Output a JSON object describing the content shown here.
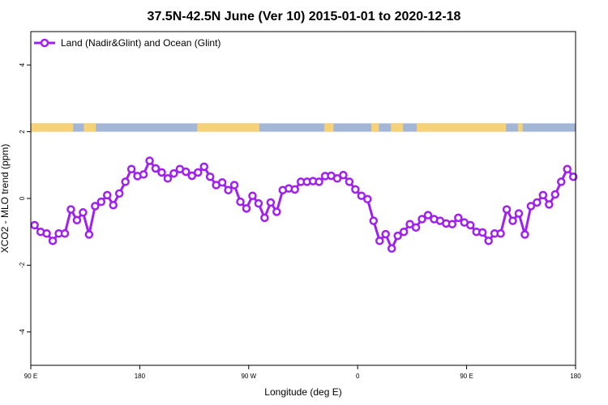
{
  "chart_data": {
    "type": "line",
    "title": "37.5N-42.5N June (Ver 10)   2015-01-01 to 2020-12-18",
    "xlabel": "Longitude (deg E)",
    "ylabel": "XCO2 - MLO trend (ppm)",
    "xlim": [
      90,
      450
    ],
    "ylim": [
      -5,
      5
    ],
    "x_ticks": [
      {
        "value": 90,
        "label": "90 E"
      },
      {
        "value": 162,
        "label": "180"
      },
      {
        "value": 234,
        "label": "90 W"
      },
      {
        "value": 306,
        "label": "0"
      },
      {
        "value": 378,
        "label": "90 E"
      },
      {
        "value": 450,
        "label": "180"
      }
    ],
    "y_ticks": [
      {
        "value": -4,
        "label": "-4"
      },
      {
        "value": -2,
        "label": "-2"
      },
      {
        "value": 0,
        "label": "0"
      },
      {
        "value": 2,
        "label": "2"
      },
      {
        "value": 4,
        "label": "4"
      }
    ],
    "legend": {
      "position": "top-left"
    },
    "series": [
      {
        "name": "Land (Nadir&Glint) and Ocean (Glint)",
        "color": "#a020f0",
        "x": [
          92.5,
          96.5,
          100.5,
          104.5,
          108.5,
          112.5,
          116.5,
          120.5,
          124.5,
          128.5,
          132.5,
          136.5,
          140.5,
          144.5,
          148.5,
          152.5,
          156.5,
          160.5,
          164.5,
          168.5,
          172.5,
          176.5,
          180.5,
          184.5,
          188.5,
          192.5,
          196.5,
          200.5,
          204.5,
          208.5,
          212.5,
          216.5,
          220.5,
          224.5,
          228.5,
          232.5,
          236.5,
          240.5,
          244.5,
          248.5,
          252.5,
          256.5,
          260.5,
          264.5,
          268.5,
          272.5,
          276.5,
          280.5,
          284.5,
          288.5,
          292.5,
          296.5,
          300.5,
          304.5,
          308.5,
          312.5,
          316.5,
          320.5,
          324.5,
          328.5,
          332.5,
          336.5,
          340.5,
          344.5,
          348.5,
          352.5,
          356.5,
          360.5,
          364.5,
          368.5,
          372.5,
          376.5,
          380.5,
          384.5,
          388.5,
          392.5,
          396.5,
          400.5,
          404.5,
          408.5,
          412.5,
          416.5,
          420.5,
          424.5,
          428.5,
          432.5,
          436.5,
          440.5,
          444.5,
          448.5
        ],
        "values": [
          -0.8,
          -1.0,
          -1.05,
          -1.27,
          -1.05,
          -1.05,
          -0.33,
          -0.65,
          -0.42,
          -1.08,
          -0.23,
          -0.1,
          0.1,
          -0.2,
          0.15,
          0.5,
          0.88,
          0.67,
          0.72,
          1.13,
          0.9,
          0.78,
          0.6,
          0.75,
          0.88,
          0.8,
          0.68,
          0.78,
          0.95,
          0.65,
          0.4,
          0.48,
          0.25,
          0.4,
          -0.1,
          -0.3,
          0.08,
          -0.15,
          -0.58,
          -0.12,
          -0.4,
          0.25,
          0.3,
          0.27,
          0.5,
          0.5,
          0.52,
          0.5,
          0.67,
          0.68,
          0.6,
          0.7,
          0.5,
          0.27,
          0.08,
          -0.02,
          -0.67,
          -1.27,
          -1.07,
          -1.5,
          -1.12,
          -1.0,
          -0.77,
          -0.87,
          -0.62,
          -0.5,
          -0.62,
          -0.67,
          -0.75,
          -0.77,
          -0.58,
          -0.72,
          -0.8,
          -1.0,
          -1.02,
          -1.27,
          -1.05,
          -1.05,
          -0.33,
          -0.67,
          -0.45,
          -1.08,
          -0.23,
          -0.12,
          0.1,
          -0.18,
          0.12,
          0.5,
          0.88,
          0.65
        ]
      }
    ],
    "land_mask_band": {
      "y_range": [
        2.0,
        2.25
      ],
      "land_color": "#f5d278",
      "ocean_color": "#a4b6d6"
    }
  }
}
